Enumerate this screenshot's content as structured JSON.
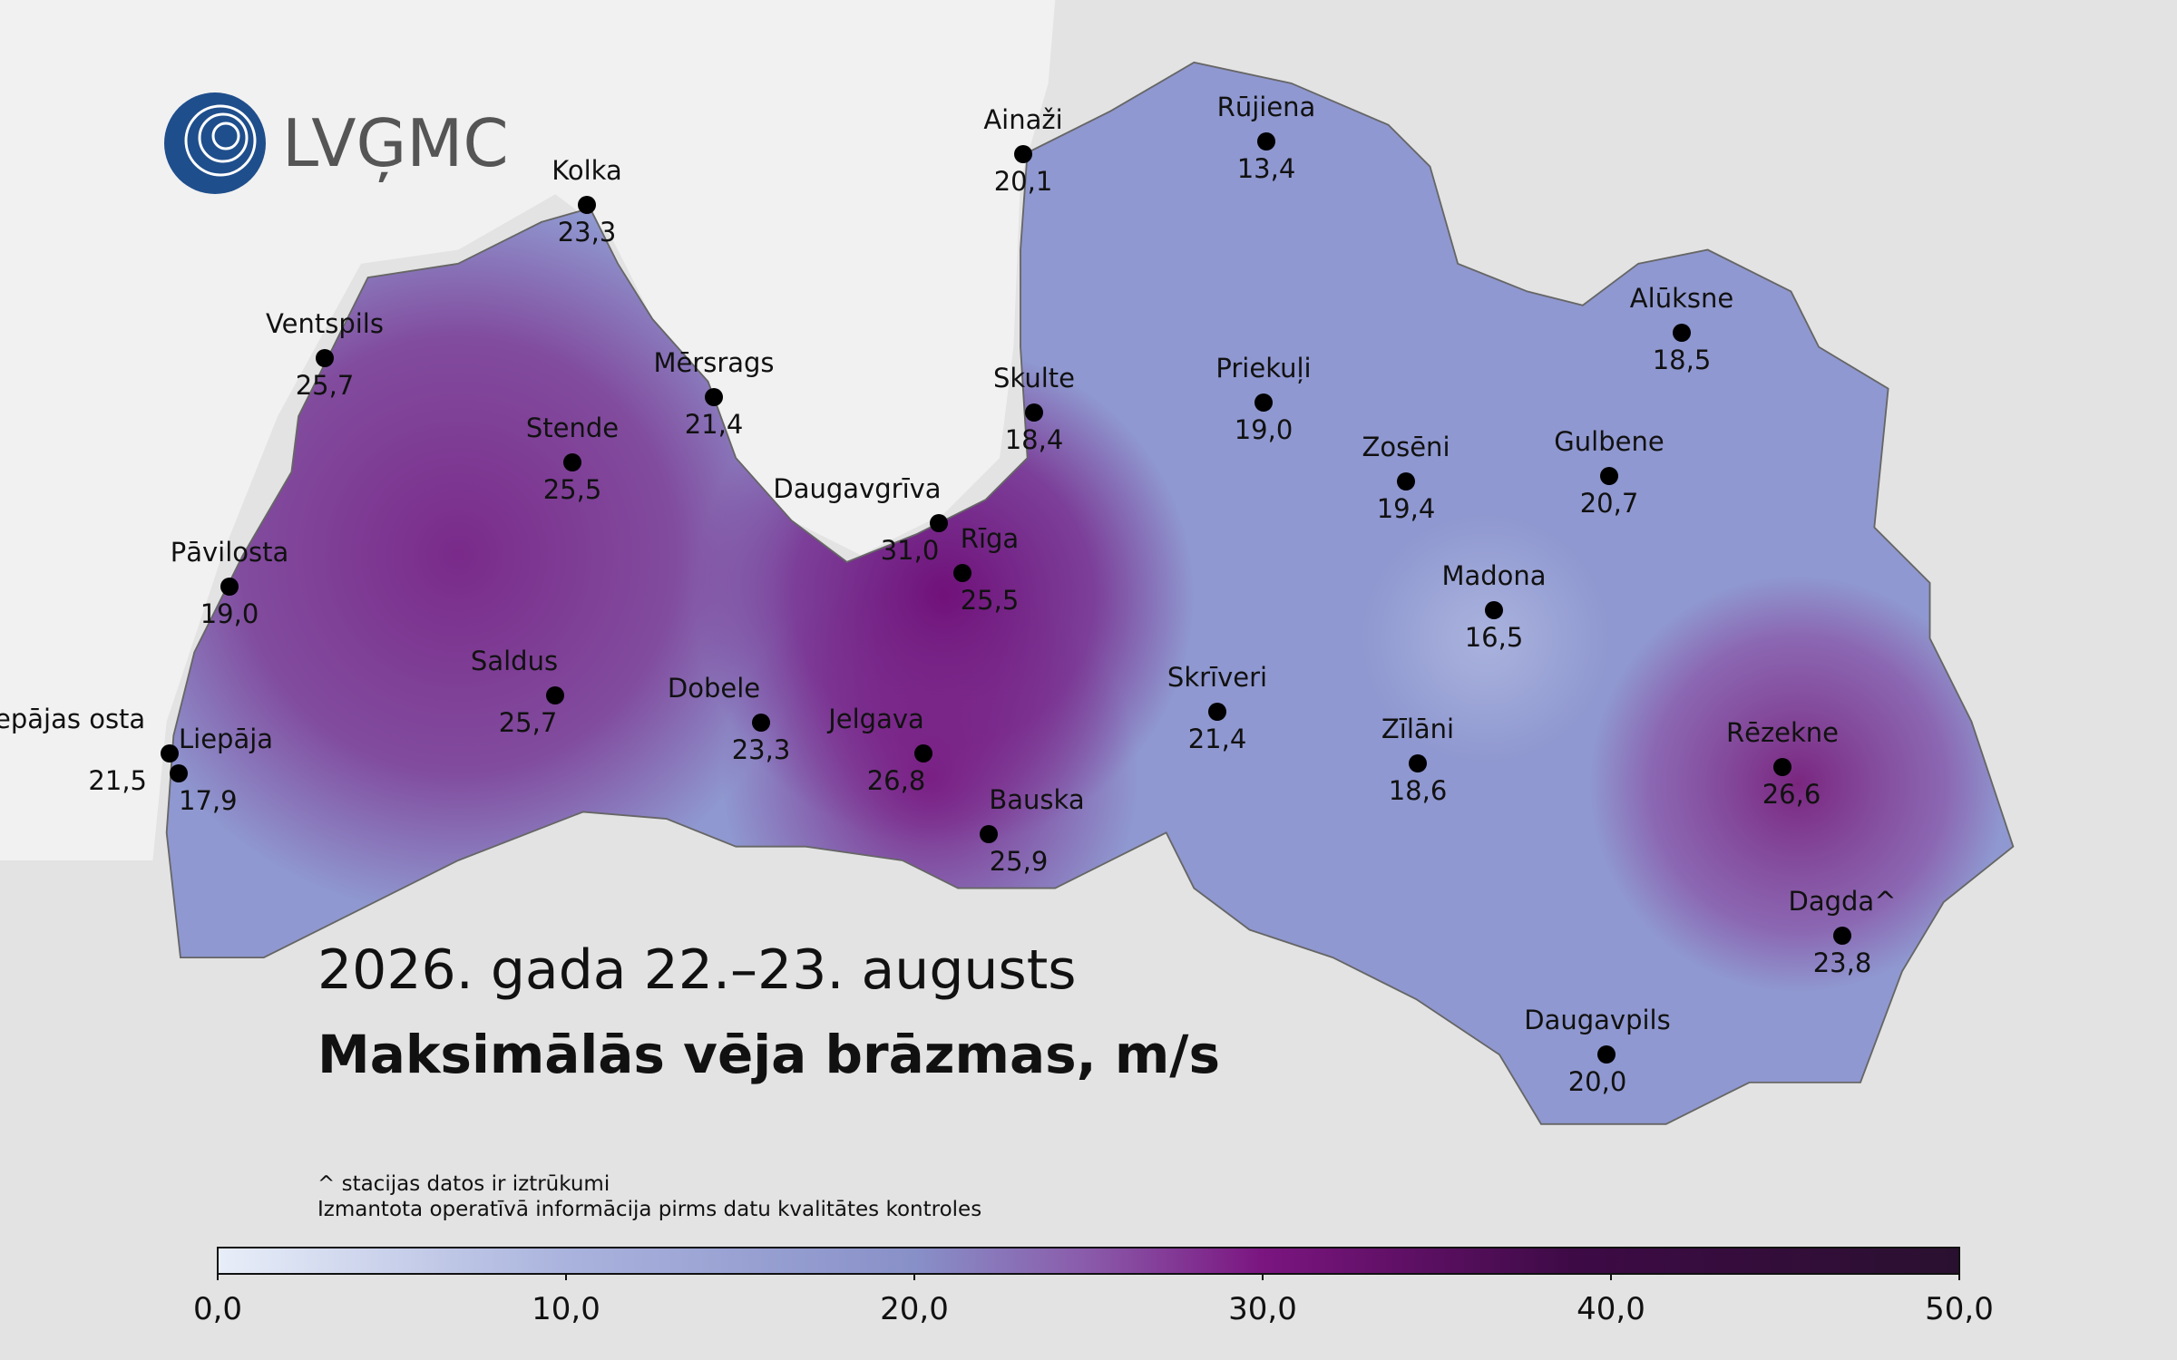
{
  "logo": "LVĢMC",
  "title": "2026. gada 22.–23. augusts",
  "subtitle": "Maksimālās vēja brāzmas, m/s",
  "notes": [
    "^ stacijas datos ir iztrūkumi",
    "Izmantota operatīvā informācija pirms datu kvalitātes kontroles"
  ],
  "stations": [
    {
      "name": "Ainaži",
      "value": 20.1,
      "label": "20,1"
    },
    {
      "name": "Rūjiena",
      "value": 13.4,
      "label": "13,4"
    },
    {
      "name": "Kolka",
      "value": 23.3,
      "label": "23,3"
    },
    {
      "name": "Ventspils",
      "value": 25.7,
      "label": "25,7"
    },
    {
      "name": "Mērsrags",
      "value": 21.4,
      "label": "21,4"
    },
    {
      "name": "Skulte",
      "value": 18.4,
      "label": "18,4"
    },
    {
      "name": "Priekuļi",
      "value": 19.0,
      "label": "19,0"
    },
    {
      "name": "Alūksne",
      "value": 18.5,
      "label": "18,5"
    },
    {
      "name": "Stende",
      "value": 25.5,
      "label": "25,5"
    },
    {
      "name": "Zosēni",
      "value": 19.4,
      "label": "19,4"
    },
    {
      "name": "Gulbene",
      "value": 20.7,
      "label": "20,7"
    },
    {
      "name": "Daugavgrīva",
      "value": 31.0,
      "label": "31,0"
    },
    {
      "name": "Rīga",
      "value": 25.5,
      "label": "25,5"
    },
    {
      "name": "Pāvilosta",
      "value": 19.0,
      "label": "19,0"
    },
    {
      "name": "Madona",
      "value": 16.5,
      "label": "16,5"
    },
    {
      "name": "Saldus",
      "value": 25.7,
      "label": "25,7"
    },
    {
      "name": "Dobele",
      "value": 23.3,
      "label": "23,3"
    },
    {
      "name": "Skrīveri",
      "value": 21.4,
      "label": "21,4"
    },
    {
      "name": "Jelgava",
      "value": 26.8,
      "label": "26,8"
    },
    {
      "name": "Zīlāni",
      "value": 18.6,
      "label": "18,6"
    },
    {
      "name": "Rēzekne",
      "value": 26.6,
      "label": "26,6"
    },
    {
      "name": "Liepājas osta",
      "value": 21.5,
      "label": "21,5"
    },
    {
      "name": "Liepāja",
      "value": 17.9,
      "label": "17,9"
    },
    {
      "name": "Bauska",
      "value": 25.9,
      "label": "25,9"
    },
    {
      "name": "Dagda^",
      "value": 23.8,
      "label": "23,8"
    },
    {
      "name": "Daugavpils",
      "value": 20.0,
      "label": "20,0"
    }
  ],
  "colorbar": {
    "range": [
      0,
      50
    ],
    "ticks": [
      {
        "value": 0,
        "label": "0,0"
      },
      {
        "value": 10,
        "label": "10,0"
      },
      {
        "value": 20,
        "label": "20,0"
      },
      {
        "value": 30,
        "label": "30,0"
      },
      {
        "value": 40,
        "label": "40,0"
      },
      {
        "value": 50,
        "label": "50,0"
      }
    ]
  }
}
